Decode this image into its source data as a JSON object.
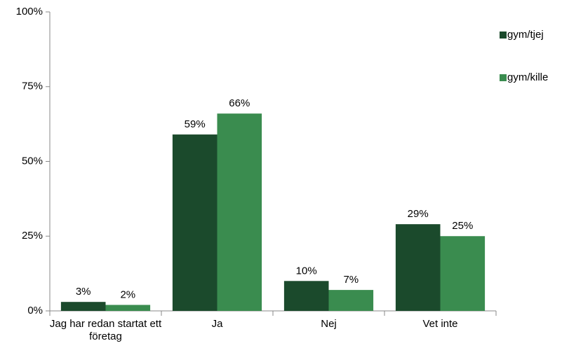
{
  "chart_data": {
    "type": "bar",
    "categories": [
      "Jag har redan startat ett företag",
      "Ja",
      "Nej",
      "Vet inte"
    ],
    "series": [
      {
        "name": "gym/tjej",
        "color": "#1b4a2c",
        "values": [
          3,
          59,
          10,
          29
        ],
        "value_labels": [
          "3%",
          "59%",
          "10%",
          "29%"
        ]
      },
      {
        "name": "gym/kille",
        "color": "#3a8c4f",
        "values": [
          2,
          66,
          7,
          25
        ],
        "value_labels": [
          "2%",
          "66%",
          "7%",
          "25%"
        ]
      }
    ],
    "ylim": [
      0,
      100
    ],
    "yticks": [
      {
        "value": 0,
        "label": "0%"
      },
      {
        "value": 25,
        "label": "25%"
      },
      {
        "value": 50,
        "label": "50%"
      },
      {
        "value": 75,
        "label": "75%"
      },
      {
        "value": 100,
        "label": "100%"
      }
    ],
    "grid": false,
    "legend": "right"
  }
}
